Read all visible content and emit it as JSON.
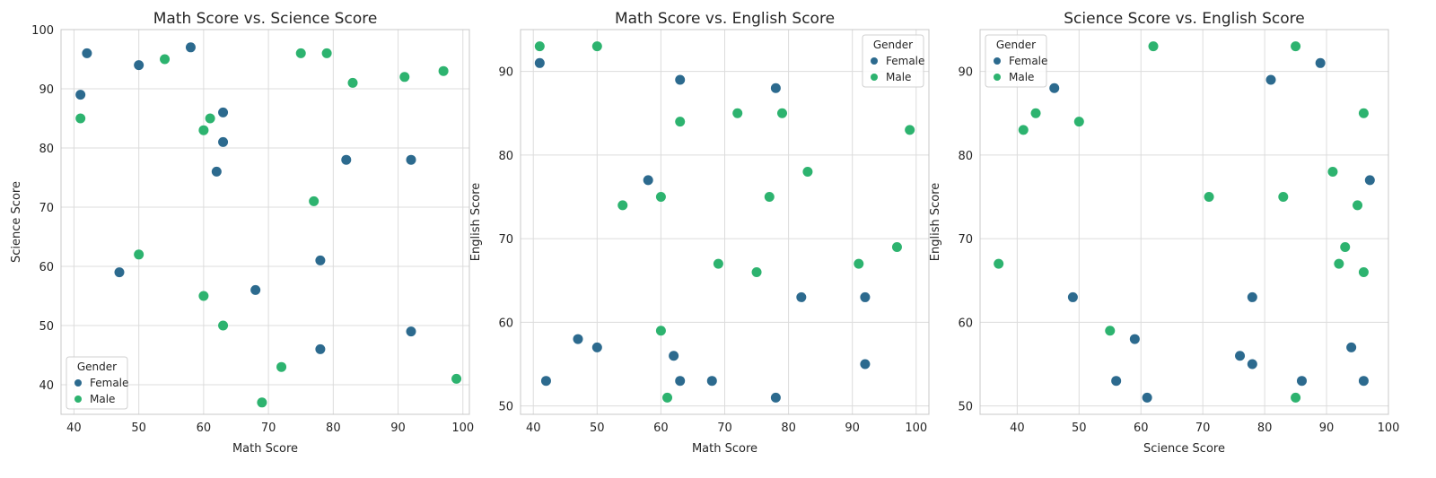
{
  "colors": {
    "Female": "#2c6a8e",
    "Male": "#2db36f",
    "grid": "#dcdcdc",
    "spine": "#c8c8c8"
  },
  "chart_data": [
    {
      "type": "scatter",
      "title": "Math Score vs. Science Score",
      "xlabel": "Math Score",
      "ylabel": "Science Score",
      "xlim": [
        38,
        101
      ],
      "ylim": [
        35,
        100
      ],
      "xticks": [
        40,
        50,
        60,
        70,
        80,
        90,
        100
      ],
      "yticks": [
        40,
        50,
        60,
        70,
        80,
        90,
        100
      ],
      "legend": {
        "title": "Gender",
        "position": "lower-left"
      },
      "grid": true,
      "series": [
        {
          "name": "Female",
          "color": "#2c6a8e",
          "points": [
            [
              42,
              96
            ],
            [
              50,
              94
            ],
            [
              58,
              97
            ],
            [
              41,
              89
            ],
            [
              63,
              86
            ],
            [
              63,
              81
            ],
            [
              62,
              76
            ],
            [
              82,
              78
            ],
            [
              92,
              78
            ],
            [
              47,
              59
            ],
            [
              78,
              61
            ],
            [
              68,
              56
            ],
            [
              78,
              46
            ],
            [
              92,
              49
            ]
          ]
        },
        {
          "name": "Male",
          "color": "#2db36f",
          "points": [
            [
              54,
              95
            ],
            [
              75,
              96
            ],
            [
              79,
              96
            ],
            [
              83,
              91
            ],
            [
              91,
              92
            ],
            [
              97,
              93
            ],
            [
              41,
              85
            ],
            [
              61,
              85
            ],
            [
              60,
              83
            ],
            [
              77,
              71
            ],
            [
              50,
              62
            ],
            [
              60,
              55
            ],
            [
              63,
              50
            ],
            [
              72,
              43
            ],
            [
              69,
              37
            ],
            [
              99,
              41
            ]
          ]
        }
      ]
    },
    {
      "type": "scatter",
      "title": "Math Score vs. English Score",
      "xlabel": "Math Score",
      "ylabel": "English Score",
      "xlim": [
        38,
        102
      ],
      "ylim": [
        49,
        95
      ],
      "xticks": [
        40,
        50,
        60,
        70,
        80,
        90,
        100
      ],
      "yticks": [
        50,
        60,
        70,
        80,
        90
      ],
      "legend": {
        "title": "Gender",
        "position": "upper-right"
      },
      "grid": true,
      "series": [
        {
          "name": "Female",
          "color": "#2c6a8e",
          "points": [
            [
              41,
              91
            ],
            [
              63,
              89
            ],
            [
              78,
              88
            ],
            [
              58,
              77
            ],
            [
              47,
              58
            ],
            [
              50,
              57
            ],
            [
              42,
              53
            ],
            [
              62,
              56
            ],
            [
              63,
              53
            ],
            [
              68,
              53
            ],
            [
              78,
              51
            ],
            [
              82,
              63
            ],
            [
              92,
              63
            ],
            [
              92,
              55
            ]
          ]
        },
        {
          "name": "Male",
          "color": "#2db36f",
          "points": [
            [
              41,
              93
            ],
            [
              50,
              93
            ],
            [
              63,
              84
            ],
            [
              72,
              85
            ],
            [
              79,
              85
            ],
            [
              99,
              83
            ],
            [
              83,
              78
            ],
            [
              60,
              75
            ],
            [
              77,
              75
            ],
            [
              54,
              74
            ],
            [
              69,
              67
            ],
            [
              75,
              66
            ],
            [
              91,
              67
            ],
            [
              97,
              69
            ],
            [
              60,
              59
            ],
            [
              61,
              51
            ]
          ]
        }
      ]
    },
    {
      "type": "scatter",
      "title": "Science Score vs. English Score",
      "xlabel": "Science Score",
      "ylabel": "English Score",
      "xlim": [
        34,
        100
      ],
      "ylim": [
        49,
        95
      ],
      "xticks": [
        40,
        50,
        60,
        70,
        80,
        90,
        100
      ],
      "yticks": [
        50,
        60,
        70,
        80,
        90
      ],
      "legend": {
        "title": "Gender",
        "position": "upper-left"
      },
      "grid": true,
      "series": [
        {
          "name": "Female",
          "color": "#2c6a8e",
          "points": [
            [
              46,
              88
            ],
            [
              81,
              89
            ],
            [
              89,
              91
            ],
            [
              97,
              77
            ],
            [
              49,
              63
            ],
            [
              78,
              63
            ],
            [
              59,
              58
            ],
            [
              76,
              56
            ],
            [
              78,
              55
            ],
            [
              56,
              53
            ],
            [
              61,
              51
            ],
            [
              86,
              53
            ],
            [
              94,
              57
            ],
            [
              96,
              53
            ]
          ]
        },
        {
          "name": "Male",
          "color": "#2db36f",
          "points": [
            [
              62,
              93
            ],
            [
              85,
              93
            ],
            [
              43,
              85
            ],
            [
              41,
              83
            ],
            [
              50,
              84
            ],
            [
              96,
              85
            ],
            [
              91,
              78
            ],
            [
              71,
              75
            ],
            [
              83,
              75
            ],
            [
              95,
              74
            ],
            [
              93,
              69
            ],
            [
              92,
              67
            ],
            [
              96,
              66
            ],
            [
              37,
              67
            ],
            [
              55,
              59
            ],
            [
              85,
              51
            ]
          ]
        }
      ]
    }
  ]
}
